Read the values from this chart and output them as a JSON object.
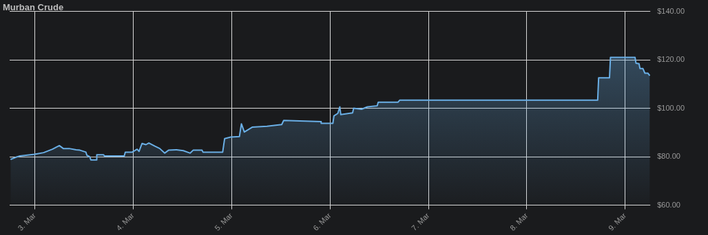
{
  "chart_data": {
    "type": "area",
    "title": "Murban Crude",
    "x": [
      "--03-02T18:06",
      "--03-02T19:26",
      "--03-02T20:24",
      "--03-03T00:00",
      "--03-03T02:10",
      "--03-03T04:19",
      "--03-03T06:00",
      "--03-03T06:58",
      "--03-03T08:24",
      "--03-03T10:05",
      "--03-03T11:02",
      "--03-03T12:29",
      "--03-03T12:43",
      "--03-03T13:26",
      "--03-03T13:41",
      "--03-03T15:07",
      "--03-03T15:08",
      "--03-03T16:48",
      "--03-03T17:02",
      "--03-03T21:50",
      "--03-03T22:05",
      "--03-03T23:46",
      "--03-04T00:58",
      "--03-04T01:26",
      "--03-04T02:10",
      "--03-04T03:07",
      "--03-04T03:50",
      "--03-04T05:17",
      "--03-04T06:29",
      "--03-04T07:41",
      "--03-04T08:38",
      "--03-04T10:34",
      "--03-04T12:14",
      "--03-04T13:55",
      "--03-04T14:38",
      "--03-04T16:48",
      "--03-04T17:02",
      "--03-04T21:50",
      "--03-04T22:19",
      "--03-04T23:46",
      "--03-05T01:55",
      "--03-05T02:24",
      "--03-05T03:07",
      "--03-05T05:02",
      "--03-05T08:38",
      "--03-05T12:14",
      "--03-05T12:43",
      "--03-05T21:50",
      "--03-05T21:51",
      "--03-06T00:43",
      "--03-06T00:58",
      "--03-06T01:55",
      "--03-06T02:24",
      "--03-06T02:38",
      "--03-06T05:31",
      "--03-06T05:46",
      "--03-06T07:41",
      "--03-06T09:07",
      "--03-06T11:31",
      "--03-06T11:46",
      "--03-06T16:34",
      "--03-06T17:02",
      "--03-07T03:50",
      "--03-08T17:17",
      "--03-08T17:31",
      "--03-08T20:10",
      "--03-08T20:24",
      "--03-09T02:24",
      "--03-09T02:38",
      "--03-09T03:22",
      "--03-09T03:36",
      "--03-09T04:19",
      "--03-09T04:48",
      "--03-09T05:31",
      "--03-09T06:00"
    ],
    "series": [
      {
        "color": "#6aafe6",
        "values": [
          78.9,
          79.8,
          80.3,
          81.0,
          81.7,
          83.1,
          84.6,
          83.4,
          83.4,
          82.9,
          82.7,
          81.9,
          80.6,
          80,
          78.7,
          78.7,
          80.8,
          80.8,
          80.3,
          80.3,
          81.9,
          81.9,
          83.1,
          82.2,
          85.5,
          85,
          85.7,
          84.4,
          83.4,
          81.5,
          82.7,
          82.9,
          82.5,
          81.5,
          82.7,
          82.7,
          81.9,
          81.9,
          87.5,
          88.1,
          88.3,
          93.6,
          90.2,
          92.2,
          92.6,
          93.3,
          95.0,
          94.5,
          93.8,
          93.8,
          96.9,
          97.9,
          100.6,
          97.4,
          98.1,
          100,
          99.6,
          100.6,
          101,
          102.5,
          102.5,
          103.4,
          103.4,
          103.4,
          112.6,
          112.6,
          121,
          121,
          118.6,
          118.4,
          116.4,
          116.4,
          114.5,
          114.5,
          113.5
        ]
      }
    ],
    "xlim": [
      "--03-02T17:53",
      "--03-09T06:07"
    ],
    "xticks": [
      {
        "value": "--03-03",
        "label": "3. Mar"
      },
      {
        "value": "--03-04",
        "label": "4. Mar"
      },
      {
        "value": "--03-05",
        "label": "5. Mar"
      },
      {
        "value": "--03-06",
        "label": "6. Mar"
      },
      {
        "value": "--03-07",
        "label": "7. Mar"
      },
      {
        "value": "--03-08",
        "label": "8. Mar"
      },
      {
        "value": "--03-09",
        "label": "9. Mar"
      }
    ],
    "ylim": [
      60,
      140
    ],
    "yticks": [
      {
        "value": 60,
        "label": "$60.00"
      },
      {
        "value": 80,
        "label": "$80.00"
      },
      {
        "value": 100,
        "label": "$100.00"
      },
      {
        "value": 120,
        "label": "$120.00"
      },
      {
        "value": 140,
        "label": "$140.00"
      }
    ],
    "grid": true,
    "legend": false,
    "marker": "none",
    "line_style": "solid"
  }
}
